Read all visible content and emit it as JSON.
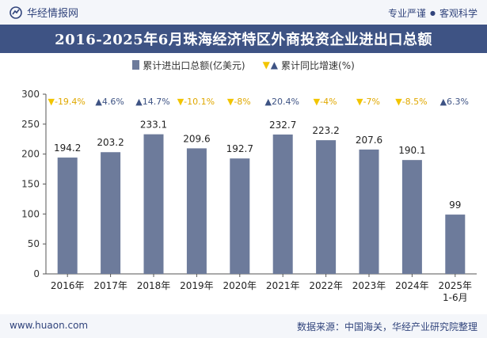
{
  "header": {
    "brand": "华经情报网",
    "tagline_left": "专业严谨",
    "tagline_right": "客观科学"
  },
  "title": "2016-2025年6月珠海经济特区外商投资企业进出口总额",
  "legend": {
    "bar_label": "累计进出口总额(亿美元)",
    "line_label": "累计同比增速(%)"
  },
  "footer": {
    "website": "www.huaon.com",
    "source": "数据来源：中国海关，华经产业研究院整理"
  },
  "colors": {
    "bar": "#6d7b9b",
    "title_bg": "#3e5384",
    "up": "#3e5384",
    "down": "#f2c500",
    "text": "#333333"
  },
  "chart_data": {
    "type": "bar",
    "categories": [
      "2016年",
      "2017年",
      "2018年",
      "2019年",
      "2020年",
      "2021年",
      "2022年",
      "2023年",
      "2024年",
      "2025年\n1-6月"
    ],
    "series": [
      {
        "name": "累计进出口总额(亿美元)",
        "values": [
          194.2,
          203.2,
          233.1,
          209.6,
          192.7,
          232.7,
          223.2,
          207.6,
          190.1,
          99
        ]
      },
      {
        "name": "累计同比增速(%)",
        "values": [
          -19.4,
          4.6,
          14.7,
          -10.1,
          -8,
          20.4,
          -4,
          -7,
          -8.5,
          6.3
        ]
      }
    ],
    "growth_labels": [
      "-19.4%",
      "4.6%",
      "14.7%",
      "-10.1%",
      "-8%",
      "20.4%",
      "-4%",
      "-7%",
      "-8.5%",
      "6.3%"
    ],
    "yticks": [
      0,
      50,
      100,
      150,
      200,
      250,
      300
    ],
    "ylim": [
      0,
      300
    ],
    "legend_position": "top-center",
    "grid": false
  }
}
